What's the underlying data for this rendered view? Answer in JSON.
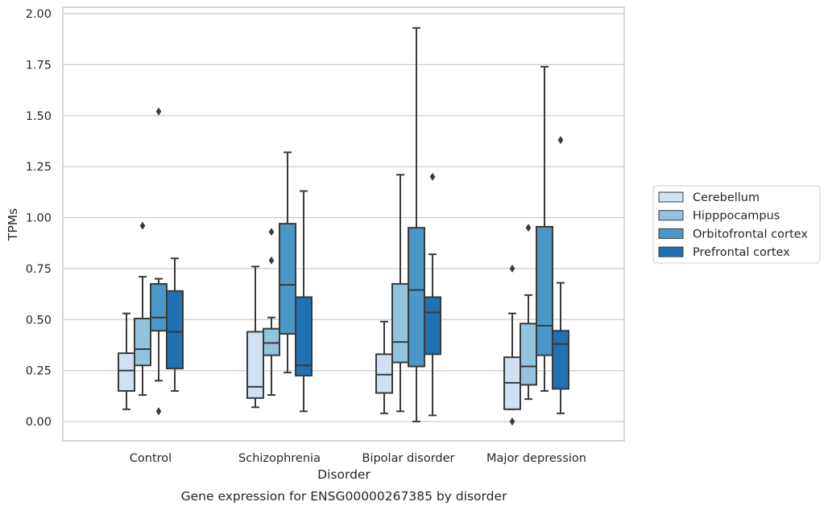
{
  "caption": "Gene expression for ENSG00000267385 by disorder",
  "chart_data": {
    "type": "box",
    "title": "",
    "xlabel": "Disorder",
    "ylabel": "TPMs",
    "ylim": [
      -0.1,
      2.02
    ],
    "y_ticks": [
      "0.00",
      "0.25",
      "0.50",
      "0.75",
      "1.00",
      "1.25",
      "1.50",
      "1.75",
      "2.00"
    ],
    "y_tick_values": [
      0,
      0.25,
      0.5,
      0.75,
      1.0,
      1.25,
      1.5,
      1.75,
      2.0
    ],
    "grid": "horizontal",
    "legend_position": "right",
    "categories": [
      "Control",
      "Schizophrenia",
      "Bipolar disorder",
      "Major depression"
    ],
    "series": [
      {
        "name": "Cerebellum",
        "color": "#cfe1f2",
        "boxes": [
          {
            "whislo": 0.06,
            "q1": 0.15,
            "med": 0.25,
            "q3": 0.335,
            "whishi": 0.53,
            "fliers": []
          },
          {
            "whislo": 0.07,
            "q1": 0.115,
            "med": 0.17,
            "q3": 0.44,
            "whishi": 0.76,
            "fliers": []
          },
          {
            "whislo": 0.04,
            "q1": 0.14,
            "med": 0.23,
            "q3": 0.33,
            "whishi": 0.49,
            "fliers": []
          },
          {
            "whislo": 0.06,
            "q1": 0.06,
            "med": 0.19,
            "q3": 0.315,
            "whishi": 0.53,
            "fliers": [
              0.75,
              0.0
            ]
          }
        ]
      },
      {
        "name": "Hipppocampus",
        "color": "#93c4de",
        "boxes": [
          {
            "whislo": 0.13,
            "q1": 0.275,
            "med": 0.355,
            "q3": 0.505,
            "whishi": 0.71,
            "fliers": [
              0.96
            ]
          },
          {
            "whislo": 0.13,
            "q1": 0.325,
            "med": 0.385,
            "q3": 0.455,
            "whishi": 0.51,
            "fliers": [
              0.79,
              0.93
            ]
          },
          {
            "whislo": 0.05,
            "q1": 0.29,
            "med": 0.39,
            "q3": 0.675,
            "whishi": 1.21,
            "fliers": []
          },
          {
            "whislo": 0.11,
            "q1": 0.18,
            "med": 0.27,
            "q3": 0.48,
            "whishi": 0.62,
            "fliers": [
              0.95
            ]
          }
        ]
      },
      {
        "name": "Orbitofrontal cortex",
        "color": "#4a98c9",
        "boxes": [
          {
            "whislo": 0.2,
            "q1": 0.445,
            "med": 0.51,
            "q3": 0.675,
            "whishi": 0.7,
            "fliers": [
              1.52,
              0.05
            ]
          },
          {
            "whislo": 0.24,
            "q1": 0.43,
            "med": 0.67,
            "q3": 0.97,
            "whishi": 1.32,
            "fliers": []
          },
          {
            "whislo": 0.0,
            "q1": 0.27,
            "med": 0.645,
            "q3": 0.95,
            "whishi": 1.93,
            "fliers": []
          },
          {
            "whislo": 0.15,
            "q1": 0.325,
            "med": 0.47,
            "q3": 0.955,
            "whishi": 1.74,
            "fliers": []
          }
        ]
      },
      {
        "name": "Prefrontal cortex",
        "color": "#2070b4",
        "boxes": [
          {
            "whislo": 0.15,
            "q1": 0.26,
            "med": 0.44,
            "q3": 0.64,
            "whishi": 0.8,
            "fliers": []
          },
          {
            "whislo": 0.05,
            "q1": 0.225,
            "med": 0.275,
            "q3": 0.61,
            "whishi": 1.13,
            "fliers": []
          },
          {
            "whislo": 0.03,
            "q1": 0.33,
            "med": 0.535,
            "q3": 0.61,
            "whishi": 0.82,
            "fliers": [
              1.2
            ]
          },
          {
            "whislo": 0.04,
            "q1": 0.16,
            "med": 0.38,
            "q3": 0.445,
            "whishi": 0.68,
            "fliers": [
              1.38
            ]
          }
        ]
      }
    ]
  }
}
